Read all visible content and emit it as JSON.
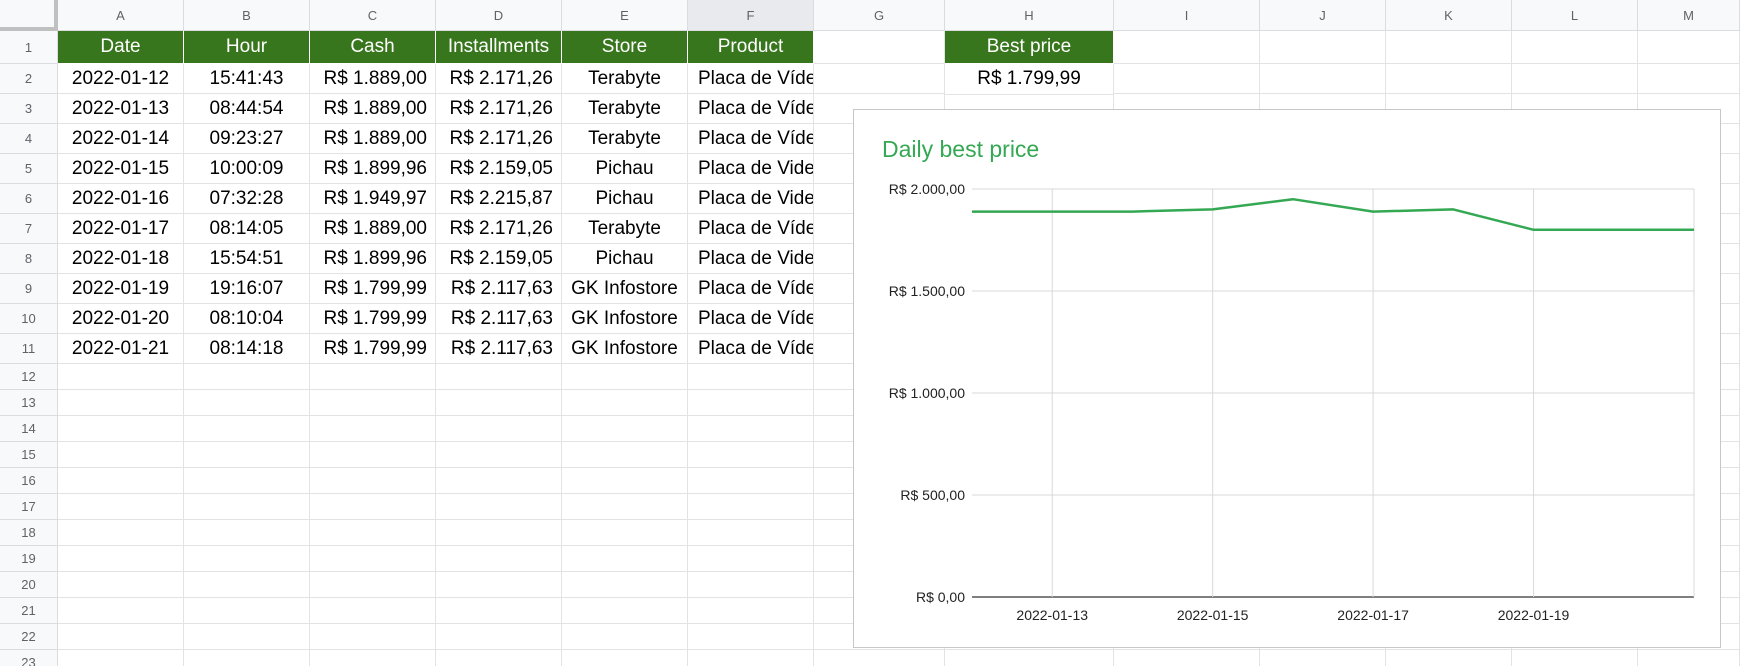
{
  "columns": [
    "A",
    "B",
    "C",
    "D",
    "E",
    "F",
    "G",
    "H",
    "I",
    "J",
    "K",
    "L",
    "M"
  ],
  "selected_column": "F",
  "rows": [
    "1",
    "2",
    "3",
    "4",
    "5",
    "6",
    "7",
    "8",
    "9",
    "10",
    "11",
    "12",
    "13",
    "14",
    "15",
    "16",
    "17",
    "18",
    "19",
    "20",
    "21",
    "22",
    "23"
  ],
  "table": {
    "headers": [
      "Date",
      "Hour",
      "Cash",
      "Installments",
      "Store",
      "Product"
    ],
    "rows": [
      [
        "2022-01-12",
        "15:41:43",
        "R$ 1.889,00",
        "R$ 2.171,26",
        "Terabyte",
        "Placa de Víde"
      ],
      [
        "2022-01-13",
        "08:44:54",
        "R$ 1.889,00",
        "R$ 2.171,26",
        "Terabyte",
        "Placa de Víde"
      ],
      [
        "2022-01-14",
        "09:23:27",
        "R$ 1.889,00",
        "R$ 2.171,26",
        "Terabyte",
        "Placa de Víde"
      ],
      [
        "2022-01-15",
        "10:00:09",
        "R$ 1.899,96",
        "R$ 2.159,05",
        "Pichau",
        "Placa de Vide"
      ],
      [
        "2022-01-16",
        "07:32:28",
        "R$ 1.949,97",
        "R$ 2.215,87",
        "Pichau",
        "Placa de Vide"
      ],
      [
        "2022-01-17",
        "08:14:05",
        "R$ 1.889,00",
        "R$ 2.171,26",
        "Terabyte",
        "Placa de Víde"
      ],
      [
        "2022-01-18",
        "15:54:51",
        "R$ 1.899,96",
        "R$ 2.159,05",
        "Pichau",
        "Placa de Vide"
      ],
      [
        "2022-01-19",
        "19:16:07",
        "R$ 1.799,99",
        "R$ 2.117,63",
        "GK Infostore",
        "Placa de Víde"
      ],
      [
        "2022-01-20",
        "08:10:04",
        "R$ 1.799,99",
        "R$ 2.117,63",
        "GK Infostore",
        "Placa de Víde"
      ],
      [
        "2022-01-21",
        "08:14:18",
        "R$ 1.799,99",
        "R$ 2.117,63",
        "GK Infostore",
        "Placa de Víde"
      ]
    ]
  },
  "best_price": {
    "header": "Best price",
    "value": "R$ 1.799,99"
  },
  "colors": {
    "header_green": "#38761d",
    "line_green": "#34a853"
  },
  "chart_data": {
    "type": "line",
    "title": "Daily best price",
    "x": [
      "2022-01-12",
      "2022-01-13",
      "2022-01-14",
      "2022-01-15",
      "2022-01-16",
      "2022-01-17",
      "2022-01-18",
      "2022-01-19",
      "2022-01-20",
      "2022-01-21"
    ],
    "series": [
      {
        "name": "Best price",
        "values": [
          1889.0,
          1889.0,
          1889.0,
          1899.96,
          1949.97,
          1889.0,
          1899.96,
          1799.99,
          1799.99,
          1799.99
        ]
      }
    ],
    "x_tick_labels": [
      "2022-01-13",
      "2022-01-15",
      "2022-01-17",
      "2022-01-19"
    ],
    "y_ticks": [
      0,
      500,
      1000,
      1500,
      2000
    ],
    "y_tick_labels": [
      "R$ 0,00",
      "R$ 500,00",
      "R$ 1.000,00",
      "R$ 1.500,00",
      "R$ 2.000,00"
    ],
    "ylim": [
      0,
      2000
    ],
    "grid": true,
    "xlabel": "",
    "ylabel": ""
  }
}
